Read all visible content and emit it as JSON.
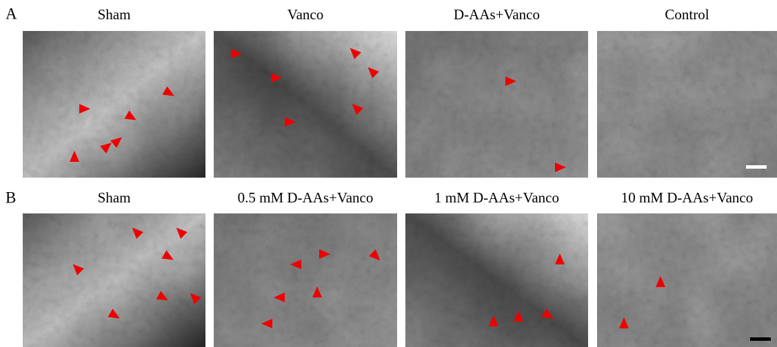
{
  "panels": [
    {
      "label": "A",
      "images": [
        {
          "caption": "Sham"
        },
        {
          "caption": "Vanco"
        },
        {
          "caption": "D-AAs+Vanco"
        },
        {
          "caption": "Control"
        }
      ]
    },
    {
      "label": "B",
      "images": [
        {
          "caption": "Sham"
        },
        {
          "caption": "0.5 mM D-AAs+Vanco"
        },
        {
          "caption": "1 mM D-AAs+Vanco"
        },
        {
          "caption": "10 mM D-AAs+Vanco"
        }
      ]
    }
  ]
}
